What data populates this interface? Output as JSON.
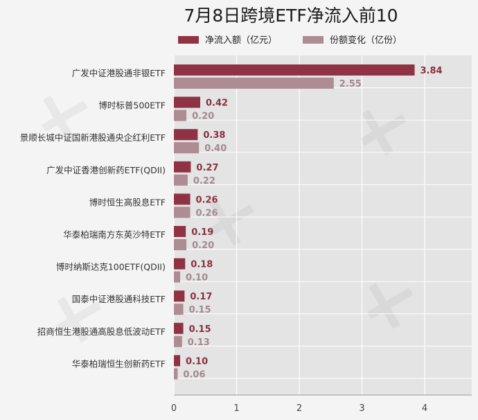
{
  "chart_data": {
    "type": "bar",
    "orientation": "horizontal",
    "title": "7月8日跨境ETF净流入前10",
    "categories": [
      "广发中证港股通非银ETF",
      "博时标普500ETF",
      "景顺长城中证国新港股通央企红利ETF",
      "广发中证香港创新药ETF(QDII)",
      "博时恒生高股息ETF",
      "华泰柏瑞南方东英沙特ETF",
      "博时纳斯达克100ETF(QDII)",
      "国泰中证港股通科技ETF",
      "招商恒生港股通高股息低波动ETF",
      "华泰柏瑞恒生创新药ETF"
    ],
    "series": [
      {
        "name": "净流入额（亿元）",
        "color": "#8f3344",
        "values": [
          3.84,
          0.42,
          0.38,
          0.27,
          0.26,
          0.19,
          0.18,
          0.17,
          0.15,
          0.1
        ],
        "labels": [
          "3.84",
          "0.42",
          "0.38",
          "0.27",
          "0.26",
          "0.19",
          "0.18",
          "0.17",
          "0.15",
          "0.10"
        ]
      },
      {
        "name": "份额变化（亿份）",
        "color": "#ad8c93",
        "values": [
          2.55,
          0.2,
          0.4,
          0.22,
          0.26,
          0.2,
          0.1,
          0.15,
          0.13,
          0.06
        ],
        "labels": [
          "2.55",
          "0.20",
          "0.40",
          "0.22",
          "0.26",
          "0.20",
          "0.10",
          "0.15",
          "0.13",
          "0.06"
        ]
      }
    ],
    "xlim": [
      0,
      4.75
    ],
    "xticks": [
      "0",
      "1",
      "2",
      "3",
      "4"
    ],
    "grid": true,
    "legend_position": "top"
  }
}
